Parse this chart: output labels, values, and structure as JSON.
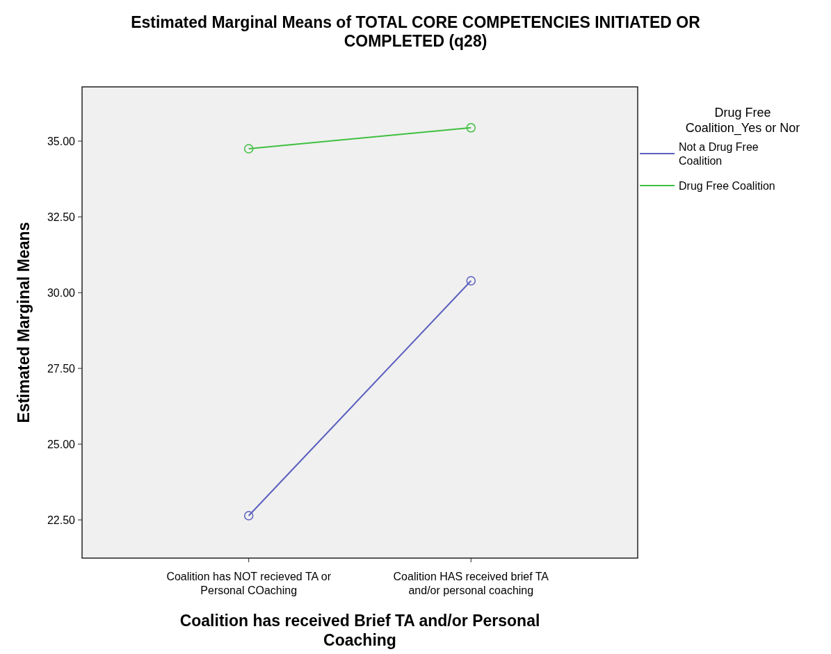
{
  "chart_data": {
    "type": "line",
    "title": "Estimated Marginal Means of TOTAL CORE COMPETENCIES INITIATED OR COMPLETED (q28)",
    "xlabel": "Coalition has received Brief TA and/or Personal Coaching",
    "ylabel": "Estimated Marginal Means",
    "legend_title": "Drug Free Coalition_Yes or Nor",
    "categories": [
      "Coalition has NOT recieved TA or Personal COaching",
      "Coalition HAS received brief TA and/or personal coaching"
    ],
    "series": [
      {
        "name": "Not a Drug Free Coalition",
        "color": "#5a5fbf",
        "values": [
          22.64,
          30.39
        ]
      },
      {
        "name": "Drug Free Coalition",
        "color": "#3fbf3f",
        "values": [
          34.75,
          35.44
        ]
      }
    ],
    "ylim": [
      21.24,
      36.79
    ],
    "yticks": [
      {
        "value": 22.5,
        "label": "22.50"
      },
      {
        "value": 25,
        "label": "25.00"
      },
      {
        "value": 27.5,
        "label": "27.50"
      },
      {
        "value": 30,
        "label": "30.00"
      },
      {
        "value": 32.5,
        "label": "32.50"
      },
      {
        "value": 35,
        "label": "35.00"
      }
    ],
    "grid": false,
    "legend": "top right",
    "marker": "circle",
    "line_style": "solid"
  }
}
